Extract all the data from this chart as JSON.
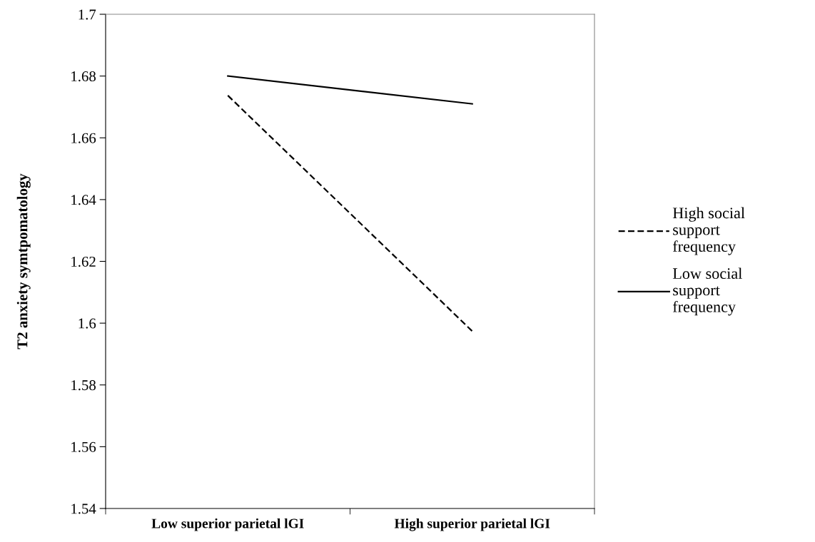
{
  "chart_data": {
    "type": "line",
    "ylabel": "T2 anxiety symtpomatology",
    "categories": [
      "Low superior parietal lGI",
      "High superior parietal lGI"
    ],
    "series": [
      {
        "name": "High social support frequency",
        "color": "#000000",
        "values": [
          1.6737,
          1.5974
        ],
        "line_style": "dashed"
      },
      {
        "name": "Low social support frequency",
        "color": "#000000",
        "values": [
          1.68,
          1.671
        ],
        "line_style": "solid"
      }
    ],
    "ylim": [
      1.54,
      1.7
    ],
    "yticks": [
      1.54,
      1.56,
      1.58,
      1.6,
      1.62,
      1.64,
      1.66,
      1.68,
      1.7
    ],
    "grid": false,
    "legend": "right",
    "marker": "none"
  }
}
